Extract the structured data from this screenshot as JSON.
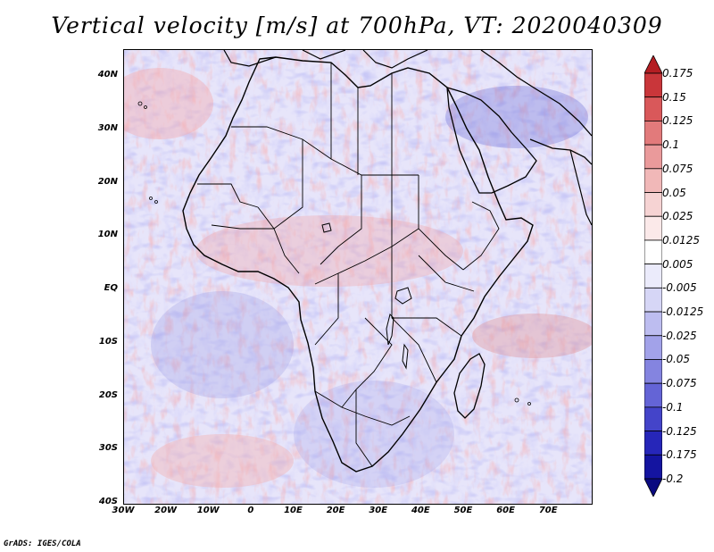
{
  "title": "Vertical velocity [m/s] at 700hPa, VT: 2020040309",
  "credit": "GrADS: IGES/COLA",
  "map": {
    "region": "Africa and surrounding oceans",
    "lon_range": [
      -30,
      75
    ],
    "lat_range": [
      -40,
      45
    ],
    "lon_labels": [
      "30W",
      "20W",
      "10W",
      "0",
      "10E",
      "20E",
      "30E",
      "40E",
      "50E",
      "60E",
      "70E"
    ],
    "lat_labels": [
      "40N",
      "30N",
      "20N",
      "10N",
      "EQ",
      "10S",
      "20S",
      "30S",
      "40S"
    ],
    "land_color": "#e8e6fa",
    "coast_color": "#000000"
  },
  "colorbar": {
    "labels": [
      "0.175",
      "0.15",
      "0.125",
      "0.1",
      "0.075",
      "0.05",
      "0.025",
      "0.0125",
      "0.005",
      "-0.005",
      "-0.0125",
      "-0.025",
      "-0.05",
      "-0.075",
      "-0.1",
      "-0.125",
      "-0.175",
      "-0.2"
    ],
    "colors": [
      "#b41e23",
      "#c9363a",
      "#d9585a",
      "#e27a7b",
      "#ea9a9b",
      "#f1b8b8",
      "#f6d3d3",
      "#fbe9e9",
      "#ffffff",
      "#ebebfb",
      "#d6d6f6",
      "#bdbdf0",
      "#a2a2e9",
      "#8484e0",
      "#6464d6",
      "#4444c9",
      "#2626b9",
      "#1414a0",
      "#0a0a80"
    ]
  }
}
